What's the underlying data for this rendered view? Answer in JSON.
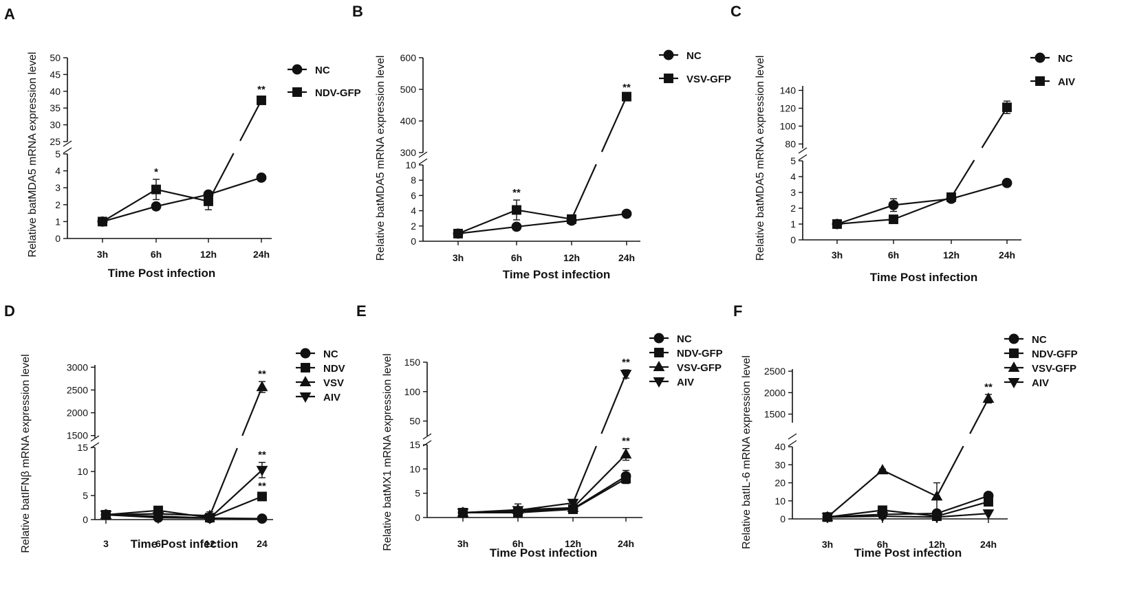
{
  "figure": {
    "panels": [
      "A",
      "B",
      "C",
      "D",
      "E",
      "F"
    ]
  },
  "chart_data": [
    {
      "panel": "A",
      "type": "line",
      "xlabel": "Time Post infection",
      "ylabel": "Relative batMDA5 mRNA expression level",
      "categories": [
        "3h",
        "6h",
        "12h",
        "24h"
      ],
      "axis_break": true,
      "upper_ticks": [
        "25",
        "30",
        "35",
        "40",
        "45",
        "50"
      ],
      "upper_ylim": [
        25,
        50
      ],
      "lower_ticks": [
        "0",
        "1",
        "2",
        "3",
        "4",
        "5"
      ],
      "lower_ylim": [
        0,
        5
      ],
      "series": [
        {
          "name": "NC",
          "marker": "circle",
          "values": [
            1.0,
            1.9,
            2.6,
            3.6
          ],
          "errors": [
            0.1,
            0.2,
            0.2,
            0.2
          ]
        },
        {
          "name": "NDV-GFP",
          "marker": "square",
          "values": [
            1.0,
            2.9,
            2.2,
            37.3
          ],
          "errors": [
            0.1,
            0.6,
            0.5,
            1.0
          ]
        }
      ],
      "significance": [
        {
          "series": 1,
          "index": 1,
          "label": "*"
        },
        {
          "series": 1,
          "index": 3,
          "label": "**"
        }
      ]
    },
    {
      "panel": "B",
      "type": "line",
      "xlabel": "Time Post infection",
      "ylabel": "Relative batMDA5 mRNA expression level",
      "categories": [
        "3h",
        "6h",
        "12h",
        "24h"
      ],
      "axis_break": true,
      "upper_ticks": [
        "300",
        "400",
        "500",
        "600"
      ],
      "upper_ylim": [
        300,
        600
      ],
      "lower_ticks": [
        "0",
        "2",
        "4",
        "6",
        "8",
        "10"
      ],
      "lower_ylim": [
        0,
        10
      ],
      "series": [
        {
          "name": "NC",
          "marker": "circle",
          "values": [
            1.0,
            1.9,
            2.7,
            3.6
          ],
          "errors": [
            0.1,
            0.2,
            0.2,
            0.2
          ]
        },
        {
          "name": "VSV-GFP",
          "marker": "square",
          "values": [
            1.0,
            4.1,
            2.9,
            477
          ],
          "errors": [
            0.1,
            1.3,
            0.3,
            6
          ]
        }
      ],
      "significance": [
        {
          "series": 1,
          "index": 1,
          "label": "**"
        },
        {
          "series": 1,
          "index": 3,
          "label": "**"
        }
      ]
    },
    {
      "panel": "C",
      "type": "line",
      "xlabel": "Time Post infection",
      "ylabel": "Relative batMDA5 mRNA expression level",
      "categories": [
        "3h",
        "6h",
        "12h",
        "24h"
      ],
      "axis_break": true,
      "upper_ticks": [
        "80",
        "100",
        "120",
        "140"
      ],
      "upper_ylim": [
        75,
        145
      ],
      "lower_ticks": [
        "0",
        "1",
        "2",
        "3",
        "4",
        "5"
      ],
      "lower_ylim": [
        0,
        5
      ],
      "series": [
        {
          "name": "NC",
          "marker": "circle",
          "values": [
            1.0,
            2.2,
            2.6,
            3.6
          ],
          "errors": [
            0.1,
            0.4,
            0.2,
            0.2
          ]
        },
        {
          "name": "AIV",
          "marker": "square",
          "values": [
            1.0,
            1.3,
            2.7,
            121
          ],
          "errors": [
            0.1,
            0.2,
            0.2,
            7
          ]
        }
      ],
      "significance": []
    },
    {
      "panel": "D",
      "type": "line",
      "xlabel": "Time Post infection",
      "ylabel": "Relative batIFNβ mRNA expression level",
      "categories": [
        "3",
        "6",
        "12",
        "24"
      ],
      "axis_break": true,
      "upper_ticks": [
        "1500",
        "2000",
        "2500",
        "3000"
      ],
      "upper_ylim": [
        1450,
        3050
      ],
      "lower_ticks": [
        "0",
        "5",
        "10",
        "15"
      ],
      "lower_ylim": [
        0,
        15
      ],
      "series": [
        {
          "name": "NC",
          "marker": "circle",
          "values": [
            1.0,
            0.4,
            0.3,
            0.2
          ],
          "errors": [
            0.2,
            0.2,
            0.2,
            0.1
          ]
        },
        {
          "name": "NDV",
          "marker": "square",
          "values": [
            1.0,
            1.9,
            0.4,
            4.8
          ],
          "errors": [
            0.2,
            0.4,
            0.4,
            0.6
          ]
        },
        {
          "name": "VSV",
          "marker": "triangle",
          "values": [
            1.0,
            1.2,
            0.8,
            2565
          ],
          "errors": [
            0.2,
            0.5,
            0.8,
            120
          ]
        },
        {
          "name": "AIV",
          "marker": "triangle-down",
          "values": [
            1.0,
            0.7,
            0.3,
            10.3
          ],
          "errors": [
            0.2,
            0.3,
            0.3,
            1.6
          ]
        }
      ],
      "significance": [
        {
          "series": 2,
          "index": 3,
          "label": "**"
        },
        {
          "series": 3,
          "index": 3,
          "label": "**"
        },
        {
          "series": 1,
          "index": 3,
          "label": "**"
        }
      ]
    },
    {
      "panel": "E",
      "type": "line",
      "xlabel": "Time Post infection",
      "ylabel": "Relative batMX1 mRNA expression level",
      "categories": [
        "3h",
        "6h",
        "12h",
        "24h"
      ],
      "axis_break": true,
      "upper_ticks": [
        "50",
        "100",
        "150"
      ],
      "upper_ylim": [
        25,
        150
      ],
      "lower_ticks": [
        "0",
        "5",
        "10",
        "15"
      ],
      "lower_ylim": [
        0,
        15
      ],
      "series": [
        {
          "name": "NC",
          "marker": "circle",
          "values": [
            1.0,
            1.3,
            1.8,
            8.5
          ],
          "errors": [
            0.3,
            0.5,
            0.4,
            1.2
          ]
        },
        {
          "name": "NDV-GFP",
          "marker": "square",
          "values": [
            1.0,
            1.0,
            1.7,
            8.0
          ],
          "errors": [
            0.3,
            0.4,
            0.4,
            1.0
          ]
        },
        {
          "name": "VSV-GFP",
          "marker": "triangle",
          "values": [
            1.0,
            1.6,
            2.0,
            13.0
          ],
          "errors": [
            0.3,
            1.2,
            0.5,
            1.2
          ]
        },
        {
          "name": "AIV",
          "marker": "triangle-down",
          "values": [
            1.0,
            1.5,
            3.0,
            130
          ],
          "errors": [
            0.3,
            0.6,
            0.5,
            7
          ]
        }
      ],
      "significance": [
        {
          "series": 3,
          "index": 3,
          "label": "**"
        },
        {
          "series": 2,
          "index": 3,
          "label": "**"
        }
      ]
    },
    {
      "panel": "F",
      "type": "line",
      "xlabel": "Time Post infection",
      "ylabel": "Relative batIL-6 mRNA expression level",
      "categories": [
        "3h",
        "6h",
        "12h",
        "24h"
      ],
      "axis_break": true,
      "upper_ticks": [
        "1500",
        "2000",
        "2500"
      ],
      "upper_ylim": [
        1300,
        2550
      ],
      "lower_ticks": [
        "0",
        "10",
        "20",
        "30",
        "40"
      ],
      "lower_ylim": [
        0,
        40
      ],
      "series": [
        {
          "name": "NC",
          "marker": "circle",
          "values": [
            1.0,
            2.5,
            3.0,
            12.8
          ],
          "errors": [
            0.3,
            0.5,
            0.5,
            0.8
          ]
        },
        {
          "name": "NDV-GFP",
          "marker": "square",
          "values": [
            1.0,
            4.8,
            1.5,
            9.5
          ],
          "errors": [
            0.3,
            0.5,
            0.5,
            0.8
          ]
        },
        {
          "name": "VSV-GFP",
          "marker": "triangle",
          "values": [
            1.0,
            27,
            12.5,
            1860
          ],
          "errors": [
            0.3,
            0.6,
            7.5,
            100
          ]
        },
        {
          "name": "AIV",
          "marker": "triangle-down",
          "values": [
            1.0,
            1.5,
            1.0,
            3.0
          ],
          "errors": [
            0.3,
            0.3,
            0.3,
            0.5
          ]
        }
      ],
      "significance": [
        {
          "series": 2,
          "index": 3,
          "label": "**"
        }
      ]
    }
  ]
}
